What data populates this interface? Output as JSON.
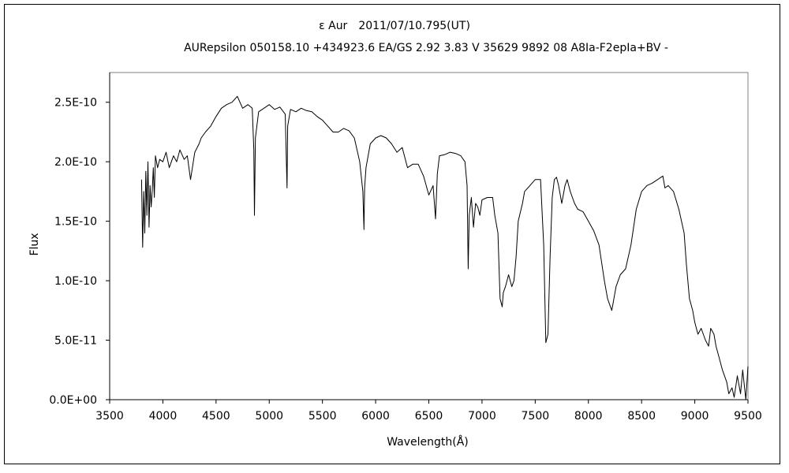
{
  "chart_data": {
    "type": "line",
    "title": "ε Aur　2011/07/10.795(UT)",
    "subtitle": "AURepsilon 050158.10 +434923.6 EA/GS 2.92 3.83 V 35629 9892 08 A8Ia-F2epIa+BV -",
    "xlabel": "Wavelength(Å)",
    "ylabel": "Flux",
    "xlim": [
      3500,
      9500
    ],
    "ylim": [
      0,
      2.75e-10
    ],
    "xticks": [
      "3500",
      "4000",
      "4500",
      "5000",
      "5500",
      "6000",
      "6500",
      "7000",
      "7500",
      "8000",
      "8500",
      "9000",
      "9500"
    ],
    "yticks": [
      "0.0E+00",
      "5.0E-11",
      "1.0E-10",
      "1.5E-10",
      "2.0E-10",
      "2.5E-10"
    ],
    "grid": false,
    "series": [
      {
        "color": "#000000",
        "x": [
          3800,
          3810,
          3820,
          3830,
          3840,
          3850,
          3860,
          3870,
          3880,
          3890,
          3900,
          3910,
          3920,
          3930,
          3950,
          3970,
          4000,
          4030,
          4060,
          4100,
          4130,
          4160,
          4200,
          4230,
          4260,
          4300,
          4340,
          4360,
          4400,
          4450,
          4500,
          4550,
          4600,
          4650,
          4700,
          4750,
          4800,
          4840,
          4855,
          4861,
          4870,
          4900,
          4950,
          5000,
          5050,
          5100,
          5150,
          5167,
          5173,
          5200,
          5250,
          5300,
          5350,
          5400,
          5450,
          5500,
          5550,
          5600,
          5650,
          5700,
          5750,
          5800,
          5850,
          5880,
          5890,
          5896,
          5910,
          5950,
          6000,
          6050,
          6100,
          6150,
          6200,
          6250,
          6300,
          6350,
          6400,
          6450,
          6500,
          6540,
          6563,
          6580,
          6600,
          6650,
          6700,
          6750,
          6800,
          6840,
          6860,
          6870,
          6880,
          6900,
          6920,
          6940,
          6960,
          6980,
          7000,
          7050,
          7100,
          7120,
          7150,
          7170,
          7190,
          7200,
          7220,
          7250,
          7280,
          7300,
          7320,
          7340,
          7380,
          7400,
          7450,
          7500,
          7550,
          7580,
          7600,
          7620,
          7640,
          7660,
          7680,
          7700,
          7720,
          7750,
          7780,
          7800,
          7830,
          7850,
          7870,
          7900,
          7950,
          8000,
          8050,
          8100,
          8150,
          8180,
          8200,
          8220,
          8240,
          8260,
          8300,
          8350,
          8400,
          8450,
          8500,
          8550,
          8600,
          8650,
          8700,
          8720,
          8750,
          8800,
          8850,
          8900,
          8920,
          8950,
          8980,
          9000,
          9030,
          9060,
          9100,
          9130,
          9150,
          9180,
          9200,
          9230,
          9260,
          9300,
          9320,
          9350,
          9370,
          9400,
          9430,
          9450,
          9480,
          9500
        ],
        "values": [
          1.85e-10,
          1.28e-10,
          1.75e-10,
          1.4e-10,
          1.92e-10,
          1.55e-10,
          2e-10,
          1.45e-10,
          1.8e-10,
          1.62e-10,
          1.75e-10,
          1.95e-10,
          1.7e-10,
          2.05e-10,
          1.95e-10,
          2.02e-10,
          2e-10,
          2.08e-10,
          1.95e-10,
          2.05e-10,
          2e-10,
          2.1e-10,
          2.02e-10,
          2.05e-10,
          1.85e-10,
          2.08e-10,
          2.15e-10,
          2.2e-10,
          2.25e-10,
          2.3e-10,
          2.38e-10,
          2.45e-10,
          2.48e-10,
          2.5e-10,
          2.55e-10,
          2.45e-10,
          2.48e-10,
          2.45e-10,
          2.1e-10,
          1.55e-10,
          2.2e-10,
          2.42e-10,
          2.45e-10,
          2.48e-10,
          2.44e-10,
          2.46e-10,
          2.4e-10,
          1.78e-10,
          2.3e-10,
          2.44e-10,
          2.42e-10,
          2.45e-10,
          2.43e-10,
          2.42e-10,
          2.38e-10,
          2.35e-10,
          2.3e-10,
          2.25e-10,
          2.25e-10,
          2.28e-10,
          2.26e-10,
          2.2e-10,
          2e-10,
          1.75e-10,
          1.43e-10,
          1.78e-10,
          1.95e-10,
          2.15e-10,
          2.2e-10,
          2.22e-10,
          2.2e-10,
          2.15e-10,
          2.08e-10,
          2.12e-10,
          1.95e-10,
          1.98e-10,
          1.98e-10,
          1.88e-10,
          1.72e-10,
          1.8e-10,
          1.52e-10,
          1.9e-10,
          2.05e-10,
          2.06e-10,
          2.08e-10,
          2.07e-10,
          2.05e-10,
          2e-10,
          1.8e-10,
          1.1e-10,
          1.55e-10,
          1.7e-10,
          1.45e-10,
          1.65e-10,
          1.62e-10,
          1.55e-10,
          1.68e-10,
          1.7e-10,
          1.7e-10,
          1.55e-10,
          1.4e-10,
          8.5e-11,
          7.8e-11,
          9e-11,
          9.5e-11,
          1.05e-10,
          9.5e-11,
          1e-10,
          1.2e-10,
          1.5e-10,
          1.65e-10,
          1.75e-10,
          1.8e-10,
          1.85e-10,
          1.85e-10,
          1.3e-10,
          4.8e-11,
          5.5e-11,
          1.2e-10,
          1.7e-10,
          1.85e-10,
          1.87e-10,
          1.8e-10,
          1.65e-10,
          1.8e-10,
          1.85e-10,
          1.75e-10,
          1.7e-10,
          1.65e-10,
          1.6e-10,
          1.58e-10,
          1.5e-10,
          1.42e-10,
          1.3e-10,
          1e-10,
          8.5e-11,
          8e-11,
          7.5e-11,
          8.5e-11,
          9.5e-11,
          1.05e-10,
          1.1e-10,
          1.3e-10,
          1.6e-10,
          1.75e-10,
          1.8e-10,
          1.82e-10,
          1.85e-10,
          1.88e-10,
          1.78e-10,
          1.8e-10,
          1.75e-10,
          1.6e-10,
          1.4e-10,
          1.15e-10,
          8.5e-11,
          7.5e-11,
          6.5e-11,
          5.5e-11,
          6e-11,
          5e-11,
          4.5e-11,
          6e-11,
          5.5e-11,
          4.5e-11,
          3.5e-11,
          2.5e-11,
          1.5e-11,
          5e-12,
          1e-11,
          2e-12,
          2e-11,
          5e-12,
          2.5e-11,
          0.0,
          2.8e-11
        ]
      }
    ]
  }
}
